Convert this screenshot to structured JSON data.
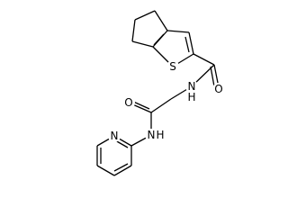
{
  "atoms": [
    {
      "label": "S"
    },
    {
      "label": "O"
    },
    {
      "label": "N"
    },
    {
      "label": "H"
    },
    {
      "label": "O"
    },
    {
      "label": "N"
    },
    {
      "label": "H"
    },
    {
      "label": "N"
    }
  ]
}
